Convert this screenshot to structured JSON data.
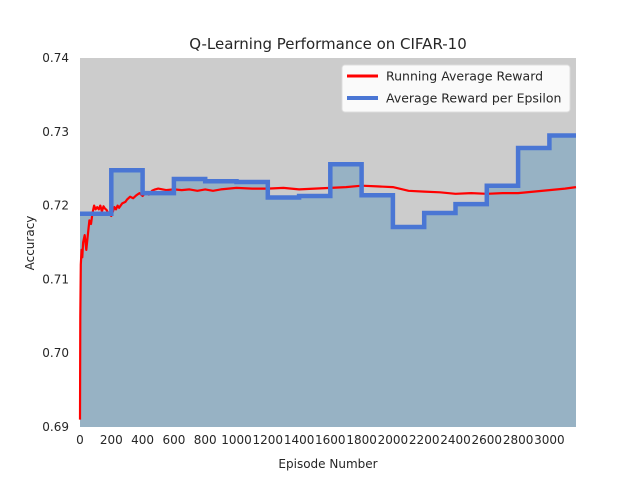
{
  "chart_data": {
    "type": "line",
    "title": "Q-Learning Performance on CIFAR-10",
    "xlabel": "Episode Number",
    "ylabel": "Accuracy",
    "xlim": [
      0,
      3170
    ],
    "ylim": [
      0.69,
      0.74
    ],
    "x_ticks": [
      "0",
      "200",
      "400",
      "600",
      "800",
      "1000",
      "1200",
      "1400",
      "1600",
      "1800",
      "2000",
      "2200",
      "2400",
      "2600",
      "2800",
      "3000"
    ],
    "y_ticks": [
      "0.69",
      "0.70",
      "0.71",
      "0.72",
      "0.73",
      "0.74"
    ],
    "grid": false,
    "legend_position": "top-right",
    "colors": {
      "running": "#ff0000",
      "epsilon": "#4a76d4",
      "fill": "#97b2c4",
      "plot_bg": "#cccccc"
    },
    "series": [
      {
        "name": "Running Average Reward",
        "style": "thin-line",
        "x": [
          0,
          2,
          5,
          10,
          15,
          20,
          30,
          40,
          50,
          60,
          70,
          80,
          90,
          100,
          110,
          120,
          130,
          140,
          150,
          160,
          170,
          180,
          190,
          200,
          210,
          220,
          230,
          240,
          250,
          270,
          290,
          300,
          320,
          340,
          360,
          380,
          400,
          420,
          440,
          460,
          480,
          500,
          550,
          600,
          650,
          700,
          750,
          800,
          850,
          900,
          950,
          1000,
          1100,
          1200,
          1300,
          1400,
          1500,
          1600,
          1700,
          1800,
          1900,
          2000,
          2100,
          2200,
          2300,
          2400,
          2500,
          2600,
          2700,
          2800,
          2900,
          3000,
          3100,
          3170
        ],
        "values": [
          0.691,
          0.705,
          0.712,
          0.714,
          0.713,
          0.715,
          0.716,
          0.714,
          0.716,
          0.718,
          0.7175,
          0.719,
          0.72,
          0.7195,
          0.7198,
          0.7195,
          0.72,
          0.7192,
          0.7199,
          0.7196,
          0.7194,
          0.719,
          0.7188,
          0.7186,
          0.7192,
          0.7198,
          0.7195,
          0.72,
          0.7197,
          0.7203,
          0.7205,
          0.7208,
          0.7212,
          0.721,
          0.7214,
          0.7217,
          0.7213,
          0.7218,
          0.7215,
          0.722,
          0.7222,
          0.7223,
          0.7221,
          0.7222,
          0.7221,
          0.7222,
          0.722,
          0.7222,
          0.722,
          0.7222,
          0.7223,
          0.7224,
          0.7223,
          0.7223,
          0.7224,
          0.7222,
          0.7223,
          0.7224,
          0.7225,
          0.7227,
          0.7226,
          0.7225,
          0.722,
          0.7219,
          0.7218,
          0.7216,
          0.7217,
          0.7216,
          0.7217,
          0.7217,
          0.7219,
          0.7221,
          0.7223,
          0.7225
        ]
      },
      {
        "name": "Average Reward per Epsilon",
        "style": "step",
        "x": [
          0,
          200,
          400,
          600,
          800,
          1000,
          1200,
          1400,
          1600,
          1800,
          2000,
          2200,
          2400,
          2600,
          2800,
          3000,
          3170
        ],
        "values": [
          0.7189,
          0.7248,
          0.7217,
          0.7236,
          0.7233,
          0.7232,
          0.7211,
          0.7213,
          0.7256,
          0.7214,
          0.7171,
          0.719,
          0.7202,
          0.7227,
          0.7278,
          0.7295,
          0.7295
        ]
      }
    ]
  }
}
